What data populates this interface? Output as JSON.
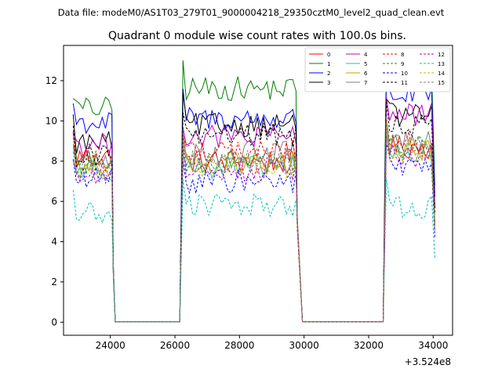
{
  "header": {
    "data_file_label": "Data file: modeM0/AS1T03_279T01_9000004218_29350cztM0_level2_quad_clean.evt"
  },
  "chart_data": {
    "type": "line",
    "title": "Quadrant 0 module wise count rates with 100.0s bins.",
    "xlabel": "",
    "ylabel": "",
    "x_offset_label": "+3.524e8",
    "xlim": [
      22550,
      34600
    ],
    "ylim": [
      -0.65,
      13.75
    ],
    "x_ticks": [
      24000,
      26000,
      28000,
      30000,
      32000,
      34000
    ],
    "x_tick_labels": [
      "24000",
      "26000",
      "28000",
      "30000",
      "32000",
      "34000"
    ],
    "y_ticks": [
      0,
      2,
      4,
      6,
      8,
      10,
      12
    ],
    "y_tick_labels": [
      "0",
      "2",
      "4",
      "6",
      "8",
      "10",
      "12"
    ],
    "grid": false,
    "legend_position": "top-right",
    "gap_value": 0.02,
    "segments": [
      {
        "start": 22850,
        "end": 24050,
        "drop_to": 2.7,
        "plateau": [
          24150,
          26150
        ],
        "rise_from": 26150,
        "rise_to": 26250
      },
      {
        "start": 26250,
        "end": 29750,
        "drop_to": 5.0,
        "plateau": [
          29950,
          32450
        ],
        "rise_from": 32450,
        "rise_to": 32550
      },
      {
        "start": 32550,
        "end": 34050,
        "drop_to": null
      }
    ],
    "segment_bins": 100,
    "series": [
      {
        "name": "0",
        "color": "#ff0000",
        "style": "solid",
        "levels": [
          8.2,
          8.0,
          8.7
        ]
      },
      {
        "name": "1",
        "color": "#008000",
        "style": "solid",
        "levels": [
          10.6,
          11.6,
          12.3
        ]
      },
      {
        "name": "2",
        "color": "#0000ff",
        "style": "solid",
        "levels": [
          9.9,
          10.1,
          11.3
        ]
      },
      {
        "name": "3",
        "color": "#000000",
        "style": "solid",
        "levels": [
          8.9,
          9.8,
          10.3
        ]
      },
      {
        "name": "4",
        "color": "#bf00bf",
        "style": "solid",
        "levels": [
          8.8,
          9.2,
          10.3
        ]
      },
      {
        "name": "5",
        "color": "#2ebfa0",
        "style": "solid",
        "levels": [
          7.6,
          7.7,
          8.4
        ]
      },
      {
        "name": "6",
        "color": "#c8a000",
        "style": "solid",
        "levels": [
          7.7,
          7.9,
          8.6
        ]
      },
      {
        "name": "7",
        "color": "#808080",
        "style": "solid",
        "levels": [
          8.0,
          8.4,
          8.9
        ]
      },
      {
        "name": "8",
        "color": "#ff0000",
        "style": "dashed",
        "levels": [
          8.1,
          8.5,
          9.0
        ]
      },
      {
        "name": "9",
        "color": "#2e8b2e",
        "style": "dashed",
        "levels": [
          7.9,
          8.0,
          8.8
        ]
      },
      {
        "name": "10",
        "color": "#0000ff",
        "style": "dashed",
        "levels": [
          7.1,
          7.0,
          7.7
        ]
      },
      {
        "name": "11",
        "color": "#000000",
        "style": "dashed",
        "levels": [
          8.3,
          9.3,
          9.8
        ]
      },
      {
        "name": "12",
        "color": "#bf00bf",
        "style": "dashed",
        "levels": [
          7.3,
          7.6,
          8.3
        ]
      },
      {
        "name": "13",
        "color": "#00bfbf",
        "style": "dashed",
        "levels": [
          5.4,
          5.8,
          5.7
        ]
      },
      {
        "name": "14",
        "color": "#bfbf00",
        "style": "dashed",
        "levels": [
          7.5,
          7.8,
          8.5
        ]
      },
      {
        "name": "15",
        "color": "#808080",
        "style": "dashed",
        "levels": [
          7.6,
          8.1,
          8.7
        ]
      }
    ]
  }
}
